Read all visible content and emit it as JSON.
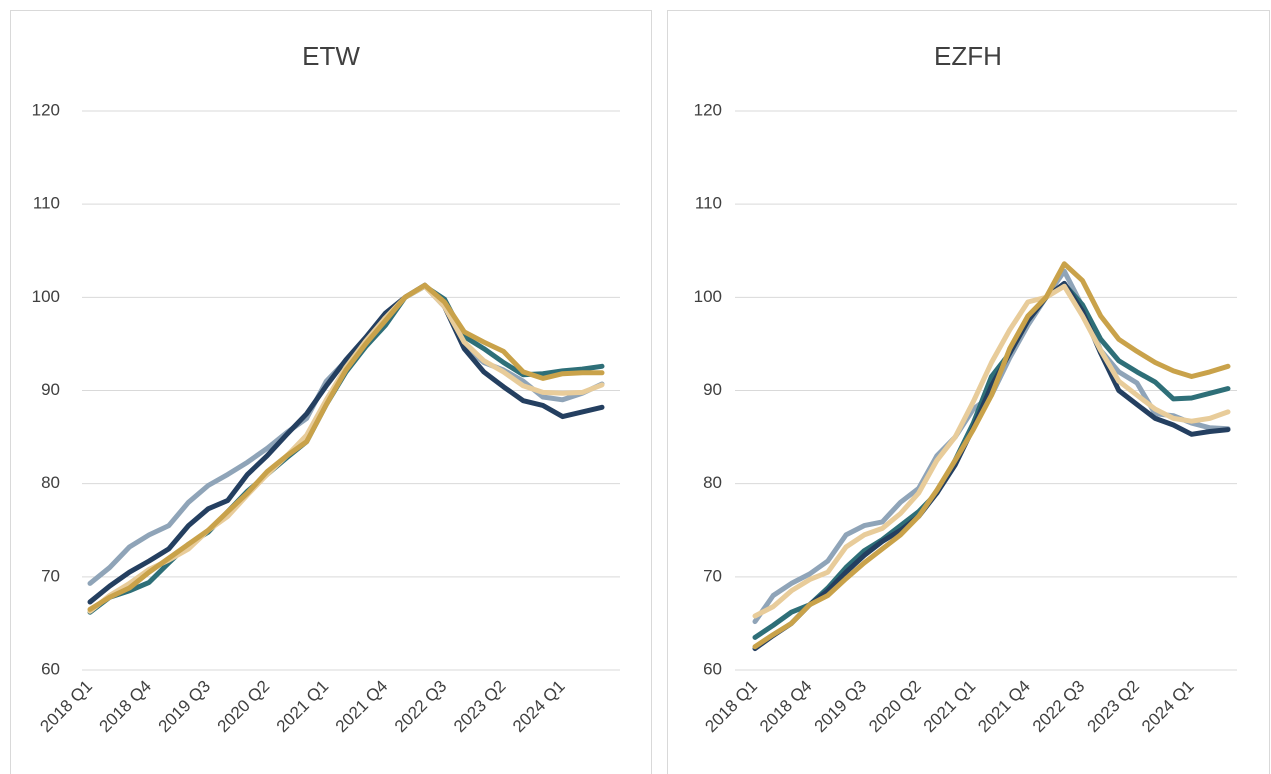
{
  "chart_data": [
    {
      "type": "line",
      "title": "ETW",
      "categories": [
        "2018 Q1",
        null,
        null,
        "2018 Q4",
        null,
        null,
        "2019 Q3",
        null,
        null,
        "2020 Q2",
        null,
        null,
        "2021 Q1",
        null,
        null,
        "2021 Q4",
        null,
        null,
        "2022 Q3",
        null,
        null,
        "2023 Q2",
        null,
        null,
        "2024 Q1",
        null,
        null
      ],
      "ylim": [
        60,
        120
      ],
      "yticks": [
        60,
        70,
        80,
        90,
        100,
        110,
        120
      ],
      "grid": true,
      "series": [
        {
          "color": "#8fa4b8",
          "values": [
            69.3,
            71,
            73.2,
            74.5,
            75.5,
            78,
            79.8,
            81,
            82.3,
            83.8,
            85.5,
            87,
            91,
            93.2,
            95.5,
            98,
            100,
            101.2,
            99,
            94.8,
            93,
            92.2,
            91,
            89.3,
            89,
            89.7,
            90.7
          ]
        },
        {
          "color": "#2e6f78",
          "values": [
            66.2,
            67.8,
            68.5,
            69.4,
            71.5,
            73.5,
            74.8,
            77,
            79.2,
            81,
            82.8,
            84.5,
            88.5,
            92,
            94.7,
            97,
            100,
            101.2,
            99.8,
            95.8,
            94.5,
            93,
            91.7,
            91.8,
            92.1,
            92.3,
            92.6
          ]
        },
        {
          "color": "#243f60",
          "values": [
            67.3,
            69,
            70.5,
            71.7,
            73,
            75.5,
            77.3,
            78.2,
            81,
            83,
            85.3,
            87.5,
            90.5,
            93.3,
            95.7,
            98.3,
            100,
            101.3,
            99,
            94.5,
            92,
            90.4,
            88.9,
            88.4,
            87.2,
            87.7,
            88.2
          ]
        },
        {
          "color": "#e8cc9a",
          "values": [
            66.3,
            68,
            69.3,
            70.8,
            71.8,
            73,
            75,
            76.5,
            78.8,
            81,
            83,
            85.2,
            89,
            92.5,
            95.3,
            97.8,
            100,
            101.2,
            99,
            95.2,
            93.2,
            92,
            90.5,
            89.8,
            89.7,
            89.8,
            90.6
          ]
        },
        {
          "color": "#c9a24a",
          "values": [
            66.5,
            67.8,
            68.8,
            70.5,
            72,
            73.5,
            75,
            77,
            79,
            81.3,
            83,
            84.5,
            88.5,
            92.2,
            95,
            97.5,
            100,
            101.3,
            99.5,
            96.3,
            95.2,
            94.2,
            92,
            91.3,
            91.8,
            91.9,
            91.9
          ]
        }
      ]
    },
    {
      "type": "line",
      "title": "EZFH",
      "categories": [
        "2018 Q1",
        null,
        null,
        "2018 Q4",
        null,
        null,
        "2019 Q3",
        null,
        null,
        "2020 Q2",
        null,
        null,
        "2021 Q1",
        null,
        null,
        "2021 Q4",
        null,
        null,
        "2022 Q3",
        null,
        null,
        "2023 Q2",
        null,
        null,
        "2024 Q1",
        null,
        null
      ],
      "ylim": [
        60,
        120
      ],
      "yticks": [
        60,
        70,
        80,
        90,
        100,
        110,
        120
      ],
      "grid": true,
      "series": [
        {
          "color": "#8fa4b8",
          "values": [
            65.2,
            68,
            69.3,
            70.3,
            71.7,
            74.5,
            75.5,
            75.9,
            78,
            79.5,
            83,
            85,
            88,
            89.5,
            93.5,
            97,
            100,
            102.8,
            99,
            94.3,
            92,
            90.8,
            87.5,
            87.3,
            86.5,
            86,
            85.9
          ]
        },
        {
          "color": "#2e6f78",
          "values": [
            63.5,
            64.8,
            66.2,
            67,
            68.8,
            71,
            72.8,
            74,
            75.5,
            77,
            79,
            82.5,
            86.5,
            91.5,
            94,
            97.5,
            100,
            101.4,
            99.2,
            95.5,
            93.2,
            92,
            90.9,
            89.1,
            89.2,
            89.7,
            90.2
          ]
        },
        {
          "color": "#243f60",
          "values": [
            62.3,
            63.7,
            65,
            67,
            68.5,
            70.5,
            72.3,
            73.8,
            75,
            76.5,
            79,
            82,
            86,
            90.5,
            94,
            97.5,
            100,
            101.5,
            98.5,
            94,
            90,
            88.5,
            87,
            86.3,
            85.3,
            85.6,
            85.8
          ]
        },
        {
          "color": "#e8cc9a",
          "values": [
            65.8,
            66.8,
            68.5,
            69.7,
            70.5,
            73.2,
            74.5,
            75.2,
            76.8,
            79,
            82.5,
            85,
            88.8,
            93,
            96.5,
            99.5,
            100,
            101.2,
            98,
            94.3,
            91,
            89.5,
            88,
            87,
            86.7,
            87,
            87.7
          ]
        },
        {
          "color": "#c9a24a",
          "values": [
            62.5,
            63.8,
            65,
            67,
            68,
            69.8,
            71.5,
            73,
            74.5,
            76.5,
            79.3,
            82.5,
            85.8,
            89.5,
            94.5,
            98,
            100,
            103.6,
            101.8,
            98,
            95.5,
            94.2,
            93,
            92.1,
            91.5,
            92,
            92.6
          ]
        }
      ]
    }
  ]
}
